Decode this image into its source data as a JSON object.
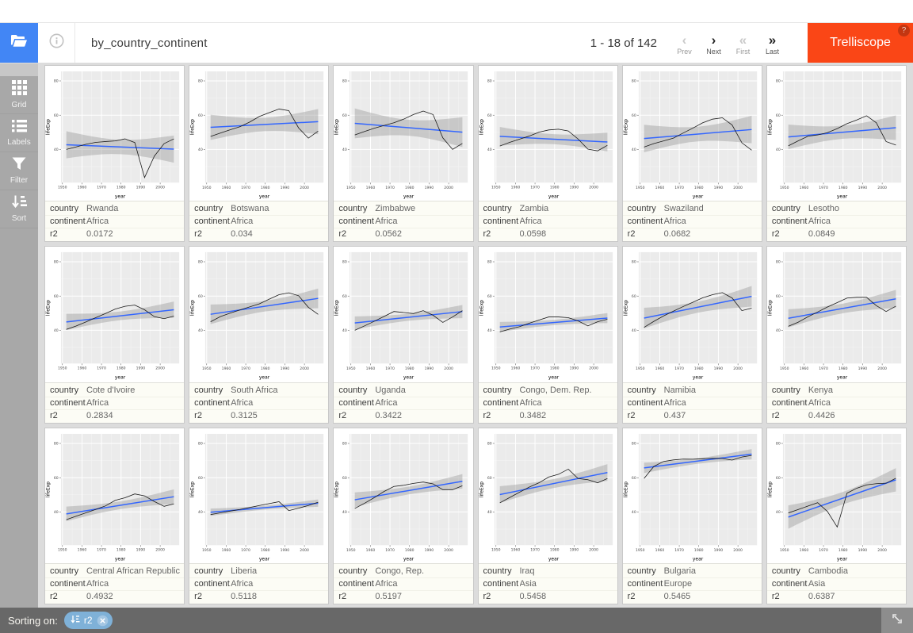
{
  "header": {
    "title": "by_country_continent",
    "pagination": "1 - 18 of 142",
    "app_button": "Trelliscope",
    "help_badge": "?",
    "nav": [
      {
        "label": "Prev",
        "symbol": "‹",
        "enabled": false
      },
      {
        "label": "Next",
        "symbol": "›",
        "enabled": true
      },
      {
        "label": "First",
        "symbol": "«",
        "enabled": false
      },
      {
        "label": "Last",
        "symbol": "»",
        "enabled": true
      }
    ]
  },
  "sidebar": {
    "items": [
      {
        "label": "Grid",
        "icon": "grid-icon"
      },
      {
        "label": "Labels",
        "icon": "labels-icon"
      },
      {
        "label": "Filter",
        "icon": "filter-icon"
      },
      {
        "label": "Sort",
        "icon": "sort-icon"
      }
    ]
  },
  "footer": {
    "sorting_label": "Sorting on:",
    "chip": {
      "field": "r2",
      "icon": "sort-asc-icon",
      "close_icon": "remove-sort-icon"
    },
    "fullscreen_icon": "fullscreen-icon"
  },
  "colors": {
    "accent_blue": "#4286f5",
    "brand_orange": "#fa4616",
    "chip_blue": "#7fb1d8",
    "sidebar_gray": "#a8a8a8",
    "footer_gray": "#686868",
    "plot_bg": "#ebebeb",
    "smooth_blue": "#3366FF",
    "ribbon_gray": "#999999"
  },
  "panel_label_keys": [
    "country",
    "continent",
    "r2"
  ],
  "chart_data": {
    "type": "line",
    "xlabel": "year",
    "ylabel": "lifeExp",
    "x": [
      1952,
      1957,
      1962,
      1967,
      1972,
      1977,
      1982,
      1987,
      1992,
      1997,
      2002,
      2007
    ],
    "x_ticks": [
      1950,
      1960,
      1970,
      1980,
      1990,
      2000
    ],
    "x_minor": [
      1955,
      1965,
      1975,
      1985,
      1995,
      2005
    ],
    "y_ticks": [
      40,
      60,
      80
    ],
    "y_minor": [
      30,
      50,
      70
    ],
    "xlim": [
      1949.25,
      2009.75
    ],
    "ylim": [
      20.6,
      85.6
    ],
    "smoother": "lm with 95% confidence ribbon",
    "panels": [
      {
        "country": "Rwanda",
        "continent": "Africa",
        "r2": "0.0172",
        "lifeExp": [
          40.0,
          41.5,
          43.0,
          44.1,
          44.6,
          45.0,
          46.2,
          44.0,
          23.6,
          36.1,
          43.4,
          46.2
        ]
      },
      {
        "country": "Botswana",
        "continent": "Africa",
        "r2": "0.034",
        "lifeExp": [
          47.6,
          49.6,
          51.5,
          53.3,
          56.0,
          59.3,
          61.5,
          63.6,
          62.7,
          52.6,
          46.6,
          50.7
        ]
      },
      {
        "country": "Zimbabwe",
        "continent": "Africa",
        "r2": "0.0562",
        "lifeExp": [
          48.5,
          50.5,
          52.4,
          54.0,
          55.6,
          57.7,
          60.4,
          62.4,
          60.4,
          46.8,
          40.0,
          43.5
        ]
      },
      {
        "country": "Zambia",
        "continent": "Africa",
        "r2": "0.0598",
        "lifeExp": [
          42.0,
          44.1,
          46.0,
          47.8,
          50.1,
          51.4,
          51.8,
          50.8,
          46.1,
          40.2,
          39.2,
          42.4
        ]
      },
      {
        "country": "Swaziland",
        "continent": "Africa",
        "r2": "0.0682",
        "lifeExp": [
          41.4,
          43.4,
          45.0,
          46.6,
          49.6,
          52.5,
          55.6,
          57.7,
          58.5,
          54.3,
          43.9,
          39.6
        ]
      },
      {
        "country": "Lesotho",
        "continent": "Africa",
        "r2": "0.0849",
        "lifeExp": [
          42.1,
          45.0,
          47.7,
          48.5,
          49.8,
          52.2,
          55.1,
          57.2,
          59.7,
          55.6,
          44.6,
          42.6
        ]
      },
      {
        "country": "Cote d'Ivoire",
        "continent": "Africa",
        "r2": "0.2834",
        "lifeExp": [
          40.5,
          42.5,
          44.9,
          47.4,
          49.8,
          52.4,
          54.0,
          54.7,
          52.0,
          48.0,
          46.8,
          48.3
        ]
      },
      {
        "country": "South Africa",
        "continent": "Africa",
        "r2": "0.3125",
        "lifeExp": [
          45.0,
          48.0,
          50.0,
          51.9,
          53.7,
          55.5,
          58.2,
          60.8,
          61.9,
          60.2,
          53.4,
          49.3
        ]
      },
      {
        "country": "Uganda",
        "continent": "Africa",
        "r2": "0.3422",
        "lifeExp": [
          40.0,
          42.6,
          45.3,
          48.1,
          51.0,
          50.4,
          49.8,
          51.5,
          48.8,
          44.6,
          47.8,
          51.5
        ]
      },
      {
        "country": "Congo, Dem. Rep.",
        "continent": "Africa",
        "r2": "0.3482",
        "lifeExp": [
          39.1,
          40.7,
          42.1,
          44.1,
          46.0,
          47.8,
          47.8,
          47.4,
          45.5,
          42.6,
          45.0,
          46.5
        ]
      },
      {
        "country": "Namibia",
        "continent": "Africa",
        "r2": "0.437",
        "lifeExp": [
          41.7,
          45.2,
          48.4,
          51.2,
          53.9,
          56.4,
          59.0,
          60.8,
          62.0,
          58.9,
          51.5,
          52.9
        ]
      },
      {
        "country": "Kenya",
        "continent": "Africa",
        "r2": "0.4426",
        "lifeExp": [
          42.3,
          44.7,
          47.9,
          50.7,
          53.6,
          56.2,
          58.8,
          59.3,
          59.3,
          54.4,
          51.0,
          54.1
        ]
      },
      {
        "country": "Central African Republic",
        "continent": "Africa",
        "r2": "0.4932",
        "lifeExp": [
          35.5,
          37.5,
          39.5,
          41.5,
          43.5,
          46.8,
          48.3,
          50.5,
          49.4,
          46.1,
          43.3,
          44.7
        ]
      },
      {
        "country": "Liberia",
        "continent": "Africa",
        "r2": "0.5118",
        "lifeExp": [
          38.5,
          39.5,
          40.5,
          41.5,
          42.6,
          43.8,
          44.9,
          46.0,
          40.8,
          42.2,
          43.8,
          45.7
        ]
      },
      {
        "country": "Congo, Rep.",
        "continent": "Africa",
        "r2": "0.5197",
        "lifeExp": [
          42.1,
          45.1,
          48.4,
          52.0,
          54.9,
          55.6,
          56.7,
          57.5,
          56.4,
          53.0,
          53.0,
          55.3
        ]
      },
      {
        "country": "Iraq",
        "continent": "Asia",
        "r2": "0.5458",
        "lifeExp": [
          45.3,
          48.4,
          51.5,
          54.5,
          57.0,
          60.4,
          62.0,
          65.0,
          59.5,
          58.8,
          57.0,
          59.5
        ]
      },
      {
        "country": "Bulgaria",
        "continent": "Europe",
        "r2": "0.5465",
        "lifeExp": [
          59.6,
          66.6,
          69.5,
          70.4,
          70.9,
          70.8,
          71.1,
          71.3,
          71.2,
          70.3,
          72.1,
          73.0
        ]
      },
      {
        "country": "Cambodia",
        "continent": "Asia",
        "r2": "0.6387",
        "lifeExp": [
          39.4,
          41.4,
          43.4,
          45.4,
          40.3,
          31.2,
          51.0,
          53.9,
          55.8,
          56.5,
          56.8,
          59.7
        ]
      }
    ]
  }
}
